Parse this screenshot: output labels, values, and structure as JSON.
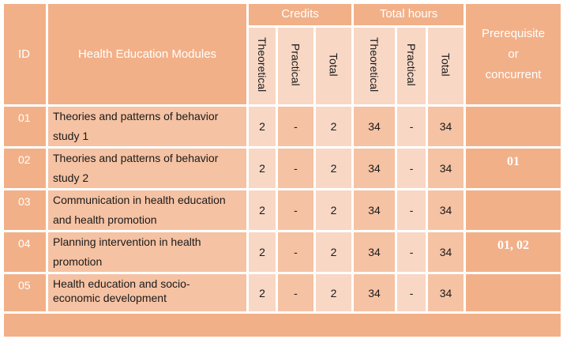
{
  "header": {
    "id": "ID",
    "modules": "Health Education Modules",
    "credits": "Credits",
    "total_hours": "Total hours",
    "prerequisite": [
      "Prerequisite",
      "or",
      "concurrent"
    ],
    "sub": {
      "credits_theoretical": "Theoretical",
      "credits_practical": "Practical",
      "credits_total": "Total",
      "hours_theoretical": "Theoretical",
      "hours_practical": "Practical",
      "hours_total": "Total"
    }
  },
  "rows": [
    {
      "id": "01",
      "module_lines": [
        "Theories and patterns of behavior",
        "study 1"
      ],
      "credits_theoretical": "2",
      "credits_practical": "-",
      "credits_total": "2",
      "hours_theoretical": "34",
      "hours_practical": "-",
      "hours_total": "34",
      "prerequisite": ""
    },
    {
      "id": "02",
      "module_lines": [
        "Theories and patterns of behavior",
        "study 2"
      ],
      "credits_theoretical": "2",
      "credits_practical": "-",
      "credits_total": "2",
      "hours_theoretical": "34",
      "hours_practical": "-",
      "hours_total": "34",
      "prerequisite": "01"
    },
    {
      "id": "03",
      "module_lines": [
        "Communication in health education",
        "and health promotion"
      ],
      "credits_theoretical": "2",
      "credits_practical": "-",
      "credits_total": "2",
      "hours_theoretical": "34",
      "hours_practical": "-",
      "hours_total": "34",
      "prerequisite": ""
    },
    {
      "id": "04",
      "module_lines": [
        "Planning intervention in health",
        "promotion"
      ],
      "credits_theoretical": "2",
      "credits_practical": "-",
      "credits_total": "2",
      "hours_theoretical": "34",
      "hours_practical": "-",
      "hours_total": "34",
      "prerequisite": "01, 02"
    },
    {
      "id": "05",
      "module_lines": [
        "Health education and socio-",
        "economic development"
      ],
      "credits_theoretical": "2",
      "credits_practical": "-",
      "credits_total": "2",
      "hours_theoretical": "34",
      "hours_practical": "-",
      "hours_total": "34",
      "prerequisite": ""
    }
  ]
}
